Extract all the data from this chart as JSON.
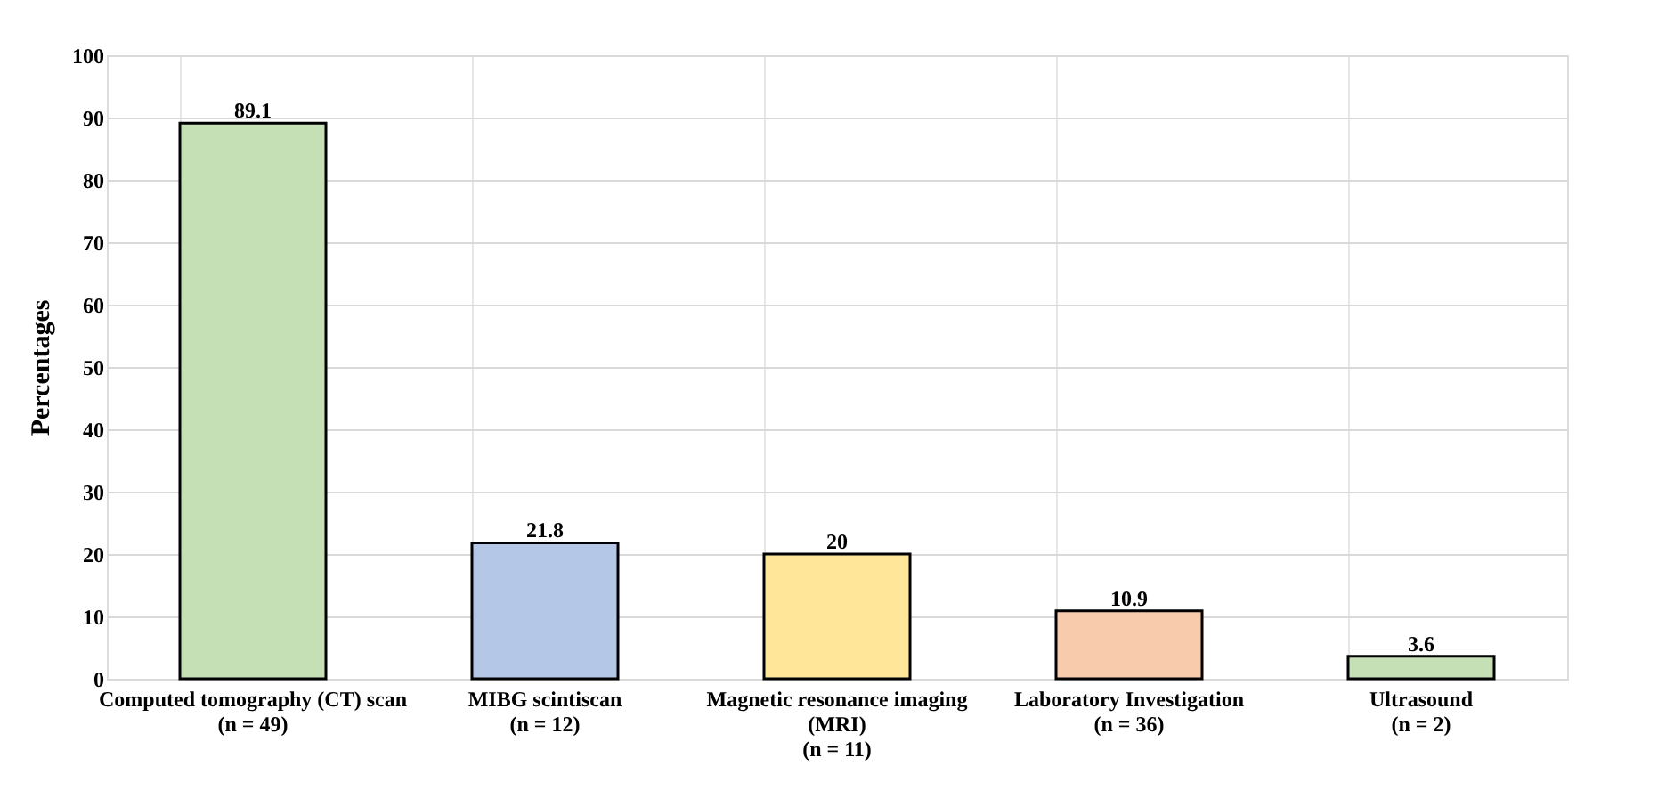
{
  "chart_data": {
    "type": "bar",
    "ylabel": "Percentages",
    "categories": [
      "Computed tomography (CT) scan\n(n = 49)",
      "MIBG scintiscan\n(n = 12)",
      "Magnetic resonance imaging\n(MRI)\n(n = 11)",
      "Laboratory Investigation\n(n = 36)",
      "Ultrasound\n(n = 2)"
    ],
    "values": [
      89.1,
      21.8,
      20,
      10.9,
      3.6
    ],
    "colors": [
      "#c5e0b4",
      "#b4c7e7",
      "#ffe699",
      "#f8cbad",
      "#c5e0b4"
    ],
    "data_labels": true,
    "ylim": [
      0,
      100
    ],
    "yticks": [
      0,
      10,
      20,
      30,
      40,
      50,
      60,
      70,
      80,
      90,
      100
    ],
    "grid": true
  }
}
